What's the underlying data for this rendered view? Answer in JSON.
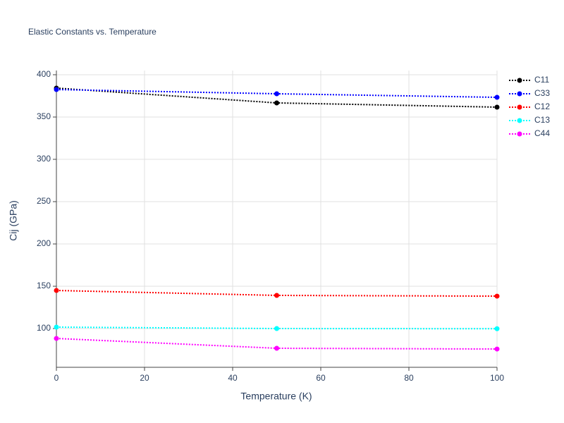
{
  "chart_data": {
    "type": "line",
    "title": "Elastic Constants vs. Temperature",
    "x_label": "Temperature (K)",
    "y_label": "Cij (GPa)",
    "x": [
      0,
      50,
      100
    ],
    "series": [
      {
        "name": "C11",
        "color": "#000000",
        "values": [
          384.2,
          366.7,
          361.7
        ]
      },
      {
        "name": "C33",
        "color": "#0000ff",
        "values": [
          382.5,
          377.5,
          373.3
        ]
      },
      {
        "name": "C12",
        "color": "#ff0000",
        "values": [
          145,
          139.2,
          138.3
        ]
      },
      {
        "name": "C13",
        "color": "#00ffff",
        "values": [
          101.7,
          100,
          99.8
        ]
      },
      {
        "name": "C44",
        "color": "#ff00ff",
        "values": [
          88.3,
          76.7,
          75.8
        ]
      }
    ],
    "xlim": [
      0,
      100
    ],
    "xticks": [
      0,
      20,
      40,
      60,
      80,
      100
    ],
    "ylim": [
      54.2,
      405
    ],
    "yticks": [
      100,
      150,
      200,
      250,
      300,
      350,
      400
    ],
    "grid": true,
    "legend": "right"
  }
}
